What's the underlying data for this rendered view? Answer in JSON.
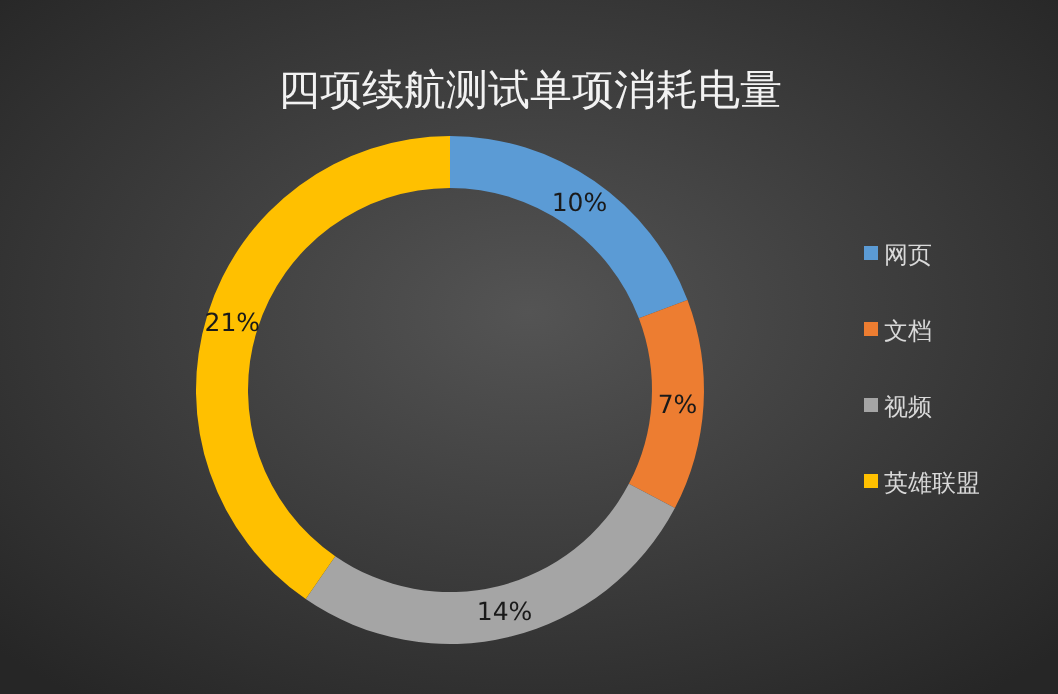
{
  "chart_data": {
    "type": "donut",
    "title": "四项续航测试单项消耗电量",
    "categories": [
      "网页",
      "文档",
      "视频",
      "英雄联盟"
    ],
    "values": [
      10,
      7,
      14,
      21
    ],
    "colors": [
      "#5b9bd5",
      "#ed7d31",
      "#a5a5a5",
      "#ffc000"
    ],
    "value_labels": [
      "10%",
      "7%",
      "14%",
      "21%"
    ],
    "legend": "right"
  }
}
